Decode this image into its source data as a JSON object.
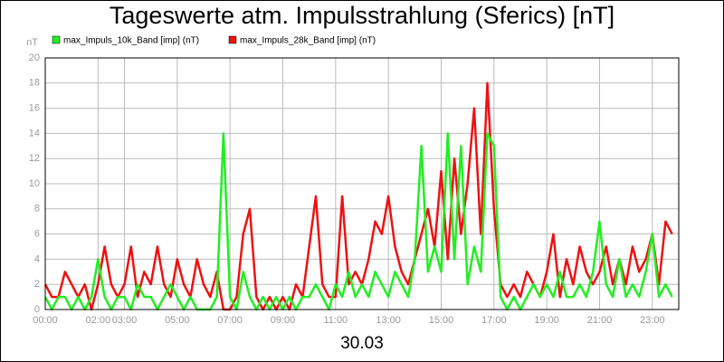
{
  "chart_data": {
    "type": "line",
    "title": "Tageswerte atm. Impulsstrahlung (Sferics) [nT]",
    "ylabel": "nT",
    "xlabel": "30.03",
    "grid": true,
    "xlim": [
      0,
      24
    ],
    "xticks": [
      {
        "value": 0,
        "label": "00:00"
      },
      {
        "value": 2,
        "label": "02:00"
      },
      {
        "value": 3,
        "label": "03:00"
      },
      {
        "value": 5,
        "label": "05:00"
      },
      {
        "value": 7,
        "label": "07:00"
      },
      {
        "value": 9,
        "label": "09:00"
      },
      {
        "value": 11,
        "label": "11:00"
      },
      {
        "value": 13,
        "label": "13:00"
      },
      {
        "value": 15,
        "label": "15:00"
      },
      {
        "value": 17,
        "label": "17:00"
      },
      {
        "value": 19,
        "label": "19:00"
      },
      {
        "value": 21,
        "label": "21:00"
      },
      {
        "value": 23,
        "label": "23:00"
      }
    ],
    "ylim": [
      0,
      20
    ],
    "yticks": [
      0,
      2,
      4,
      6,
      8,
      10,
      12,
      14,
      16,
      18,
      20
    ],
    "x": [
      0,
      0.25,
      0.5,
      0.75,
      1,
      1.25,
      1.5,
      1.75,
      2,
      2.25,
      2.5,
      2.75,
      3,
      3.25,
      3.5,
      3.75,
      4,
      4.25,
      4.5,
      4.75,
      5,
      5.25,
      5.5,
      5.75,
      6,
      6.25,
      6.5,
      6.75,
      7,
      7.25,
      7.5,
      7.75,
      8,
      8.25,
      8.5,
      8.75,
      9,
      9.25,
      9.5,
      9.75,
      10,
      10.25,
      10.5,
      10.75,
      11,
      11.25,
      11.5,
      11.75,
      12,
      12.25,
      12.5,
      12.75,
      13,
      13.25,
      13.5,
      13.75,
      14,
      14.25,
      14.5,
      14.75,
      15,
      15.25,
      15.5,
      15.75,
      16,
      16.25,
      16.5,
      16.75,
      17,
      17.25,
      17.5,
      17.75,
      18,
      18.25,
      18.5,
      18.75,
      19,
      19.25,
      19.5,
      19.75,
      20,
      20.25,
      20.5,
      20.75,
      21,
      21.25,
      21.5,
      21.75,
      22,
      22.25,
      22.5,
      22.75,
      23,
      23.25,
      23.5,
      23.75
    ],
    "series": [
      {
        "name": "max_Impuls_10k_Band [imp] (nT)",
        "color": "#22ee22",
        "values": [
          1,
          0,
          1,
          1,
          0,
          1,
          0,
          1,
          4,
          1,
          0,
          1,
          1,
          0,
          2,
          1,
          1,
          0,
          1,
          2,
          1,
          0,
          1,
          0,
          0,
          0,
          1,
          14,
          1,
          0,
          3,
          1,
          0,
          1,
          0,
          1,
          0,
          1,
          0,
          1,
          1,
          2,
          1,
          0,
          2,
          1,
          3,
          1,
          2,
          1,
          3,
          2,
          1,
          3,
          2,
          1,
          4,
          13,
          3,
          5,
          3,
          14,
          4,
          13,
          2,
          5,
          3,
          14,
          13,
          1,
          0,
          1,
          0,
          1,
          2,
          1,
          2,
          1,
          3,
          1,
          1,
          2,
          1,
          3,
          7,
          2,
          1,
          4,
          1,
          2,
          1,
          3,
          6,
          1,
          2,
          1
        ]
      },
      {
        "name": "max_Impuls_28k_Band [imp] (nT)",
        "color": "#ee1111",
        "values": [
          2,
          1,
          1,
          3,
          2,
          1,
          2,
          0,
          2,
          5,
          2,
          1,
          2,
          5,
          1,
          3,
          2,
          5,
          2,
          1,
          4,
          2,
          1,
          4,
          2,
          1,
          3,
          0,
          0,
          1,
          6,
          8,
          1,
          0,
          1,
          0,
          1,
          0,
          2,
          1,
          5,
          9,
          2,
          1,
          1,
          9,
          2,
          3,
          2,
          4,
          7,
          6,
          9,
          5,
          3,
          2,
          4,
          6,
          8,
          5,
          11,
          4,
          12,
          6,
          10,
          16,
          6,
          18,
          8,
          2,
          1,
          2,
          1,
          3,
          2,
          1,
          3,
          6,
          1,
          4,
          2,
          5,
          3,
          2,
          3,
          5,
          2,
          4,
          2,
          5,
          3,
          4,
          6,
          2,
          7,
          6
        ]
      }
    ]
  }
}
